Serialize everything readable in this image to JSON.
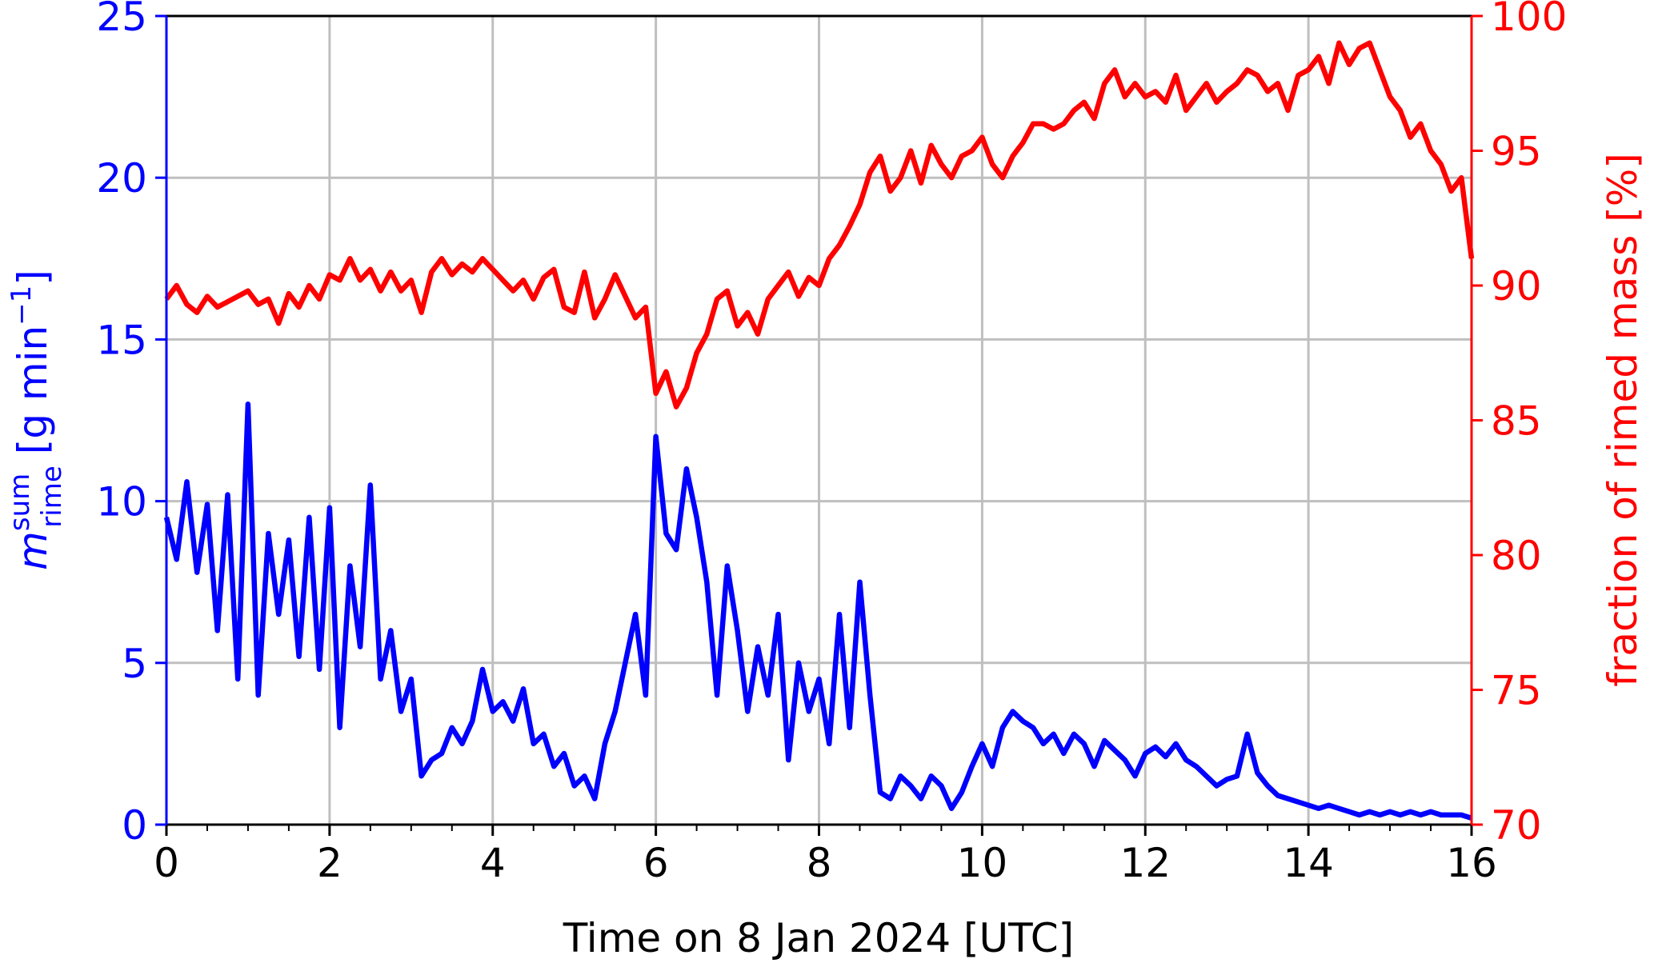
{
  "chart_data": {
    "type": "line",
    "xlabel": "Time on 8 Jan 2024 [UTC]",
    "ylabel": {
      "symbol": "m",
      "sup": "sum",
      "sub": "rime",
      "unit": "[g min",
      "unit_sup": "−1",
      "unit_close": "]"
    },
    "y2label": "fraction of rimed mass [%]",
    "x": [
      0,
      0.125,
      0.25,
      0.375,
      0.5,
      0.625,
      0.75,
      0.875,
      1,
      1.125,
      1.25,
      1.375,
      1.5,
      1.625,
      1.75,
      1.875,
      2,
      2.125,
      2.25,
      2.375,
      2.5,
      2.625,
      2.75,
      2.875,
      3,
      3.125,
      3.25,
      3.375,
      3.5,
      3.625,
      3.75,
      3.875,
      4,
      4.125,
      4.25,
      4.375,
      4.5,
      4.625,
      4.75,
      4.875,
      5,
      5.125,
      5.25,
      5.375,
      5.5,
      5.625,
      5.75,
      5.875,
      6,
      6.125,
      6.25,
      6.375,
      6.5,
      6.625,
      6.75,
      6.875,
      7,
      7.125,
      7.25,
      7.375,
      7.5,
      7.625,
      7.75,
      7.875,
      8,
      8.125,
      8.25,
      8.375,
      8.5,
      8.625,
      8.75,
      8.875,
      9,
      9.125,
      9.25,
      9.375,
      9.5,
      9.625,
      9.75,
      9.875,
      10,
      10.125,
      10.25,
      10.375,
      10.5,
      10.625,
      10.75,
      10.875,
      11,
      11.125,
      11.25,
      11.375,
      11.5,
      11.625,
      11.75,
      11.875,
      12,
      12.125,
      12.25,
      12.375,
      12.5,
      12.625,
      12.75,
      12.875,
      13,
      13.125,
      13.25,
      13.375,
      13.5,
      13.625,
      13.75,
      13.875,
      14,
      14.125,
      14.25,
      14.375,
      14.5,
      14.625,
      14.75,
      14.875,
      15,
      15.125,
      15.25,
      15.375,
      15.5,
      15.625,
      15.75,
      15.875,
      16
    ],
    "series": [
      {
        "name": "rime mass",
        "color": "#0000ff",
        "axis": "y",
        "values": [
          9.5,
          8.2,
          10.6,
          7.8,
          9.9,
          6.0,
          10.2,
          4.5,
          13.0,
          4.0,
          9.0,
          6.5,
          8.8,
          5.2,
          9.5,
          4.8,
          9.8,
          3.0,
          8.0,
          5.5,
          10.5,
          4.5,
          6.0,
          3.5,
          4.5,
          1.5,
          2.0,
          2.2,
          3.0,
          2.5,
          3.2,
          4.8,
          3.5,
          3.8,
          3.2,
          4.2,
          2.5,
          2.8,
          1.8,
          2.2,
          1.2,
          1.5,
          0.8,
          2.5,
          3.5,
          5.0,
          6.5,
          4.0,
          12.0,
          9.0,
          8.5,
          11.0,
          9.5,
          7.5,
          4.0,
          8.0,
          6.0,
          3.5,
          5.5,
          4.0,
          6.5,
          2.0,
          5.0,
          3.5,
          4.5,
          2.5,
          6.5,
          3.0,
          7.5,
          4.0,
          1.0,
          0.8,
          1.5,
          1.2,
          0.8,
          1.5,
          1.2,
          0.5,
          1.0,
          1.8,
          2.5,
          1.8,
          3.0,
          3.5,
          3.2,
          3.0,
          2.5,
          2.8,
          2.2,
          2.8,
          2.5,
          1.8,
          2.6,
          2.3,
          2.0,
          1.5,
          2.2,
          2.4,
          2.1,
          2.5,
          2.0,
          1.8,
          1.5,
          1.2,
          1.4,
          1.5,
          2.8,
          1.6,
          1.2,
          0.9,
          0.8,
          0.7,
          0.6,
          0.5,
          0.6,
          0.5,
          0.4,
          0.3,
          0.4,
          0.3,
          0.4,
          0.3,
          0.4,
          0.3,
          0.4,
          0.3,
          0.3,
          0.3,
          0.2
        ]
      },
      {
        "name": "rimed fraction",
        "color": "#ff0000",
        "axis": "y2",
        "values": [
          89.5,
          90.0,
          89.3,
          89.0,
          89.6,
          89.2,
          89.4,
          89.6,
          89.8,
          89.3,
          89.5,
          88.6,
          89.7,
          89.2,
          90.0,
          89.5,
          90.4,
          90.2,
          91.0,
          90.2,
          90.6,
          89.8,
          90.5,
          89.8,
          90.2,
          89.0,
          90.5,
          91.0,
          90.4,
          90.8,
          90.5,
          91.0,
          90.6,
          90.2,
          89.8,
          90.2,
          89.5,
          90.3,
          90.6,
          89.2,
          89.0,
          90.5,
          88.8,
          89.5,
          90.4,
          89.6,
          88.8,
          89.2,
          86.0,
          86.8,
          85.5,
          86.2,
          87.5,
          88.2,
          89.5,
          89.8,
          88.5,
          89.0,
          88.2,
          89.5,
          90.0,
          90.5,
          89.6,
          90.3,
          90.0,
          91.0,
          91.5,
          92.2,
          93.0,
          94.2,
          94.8,
          93.5,
          94.0,
          95.0,
          93.8,
          95.2,
          94.5,
          94.0,
          94.8,
          95.0,
          95.5,
          94.5,
          94.0,
          94.8,
          95.3,
          96.0,
          96.0,
          95.8,
          96.0,
          96.5,
          96.8,
          96.2,
          97.5,
          98.0,
          97.0,
          97.5,
          97.0,
          97.2,
          96.8,
          97.8,
          96.5,
          97.0,
          97.5,
          96.8,
          97.2,
          97.5,
          98.0,
          97.8,
          97.2,
          97.5,
          96.5,
          97.8,
          98.0,
          98.5,
          97.5,
          99.0,
          98.2,
          98.8,
          99.0,
          98.0,
          97.0,
          96.5,
          95.5,
          96.0,
          95.0,
          94.5,
          93.5,
          94.0,
          91.0
        ]
      }
    ],
    "xlim": [
      0,
      16
    ],
    "xticks": [
      0,
      2,
      4,
      6,
      8,
      10,
      12,
      14,
      16
    ],
    "xminorticks": [
      0.5,
      1,
      1.5,
      2.5,
      3,
      3.5,
      4.5,
      5,
      5.5,
      6.5,
      7,
      7.5,
      8.5,
      9,
      9.5,
      10.5,
      11,
      11.5,
      12.5,
      13,
      13.5,
      14.5,
      15,
      15.5
    ],
    "ylim": [
      0,
      25
    ],
    "yticks": [
      0,
      5,
      10,
      15,
      20,
      25
    ],
    "y2lim": [
      70,
      100
    ],
    "y2ticks": [
      70,
      75,
      80,
      85,
      90,
      95,
      100
    ],
    "grid": true,
    "y_color": "#0000ff",
    "y2_color": "#ff0000",
    "grid_color": "#bfbfbf"
  }
}
